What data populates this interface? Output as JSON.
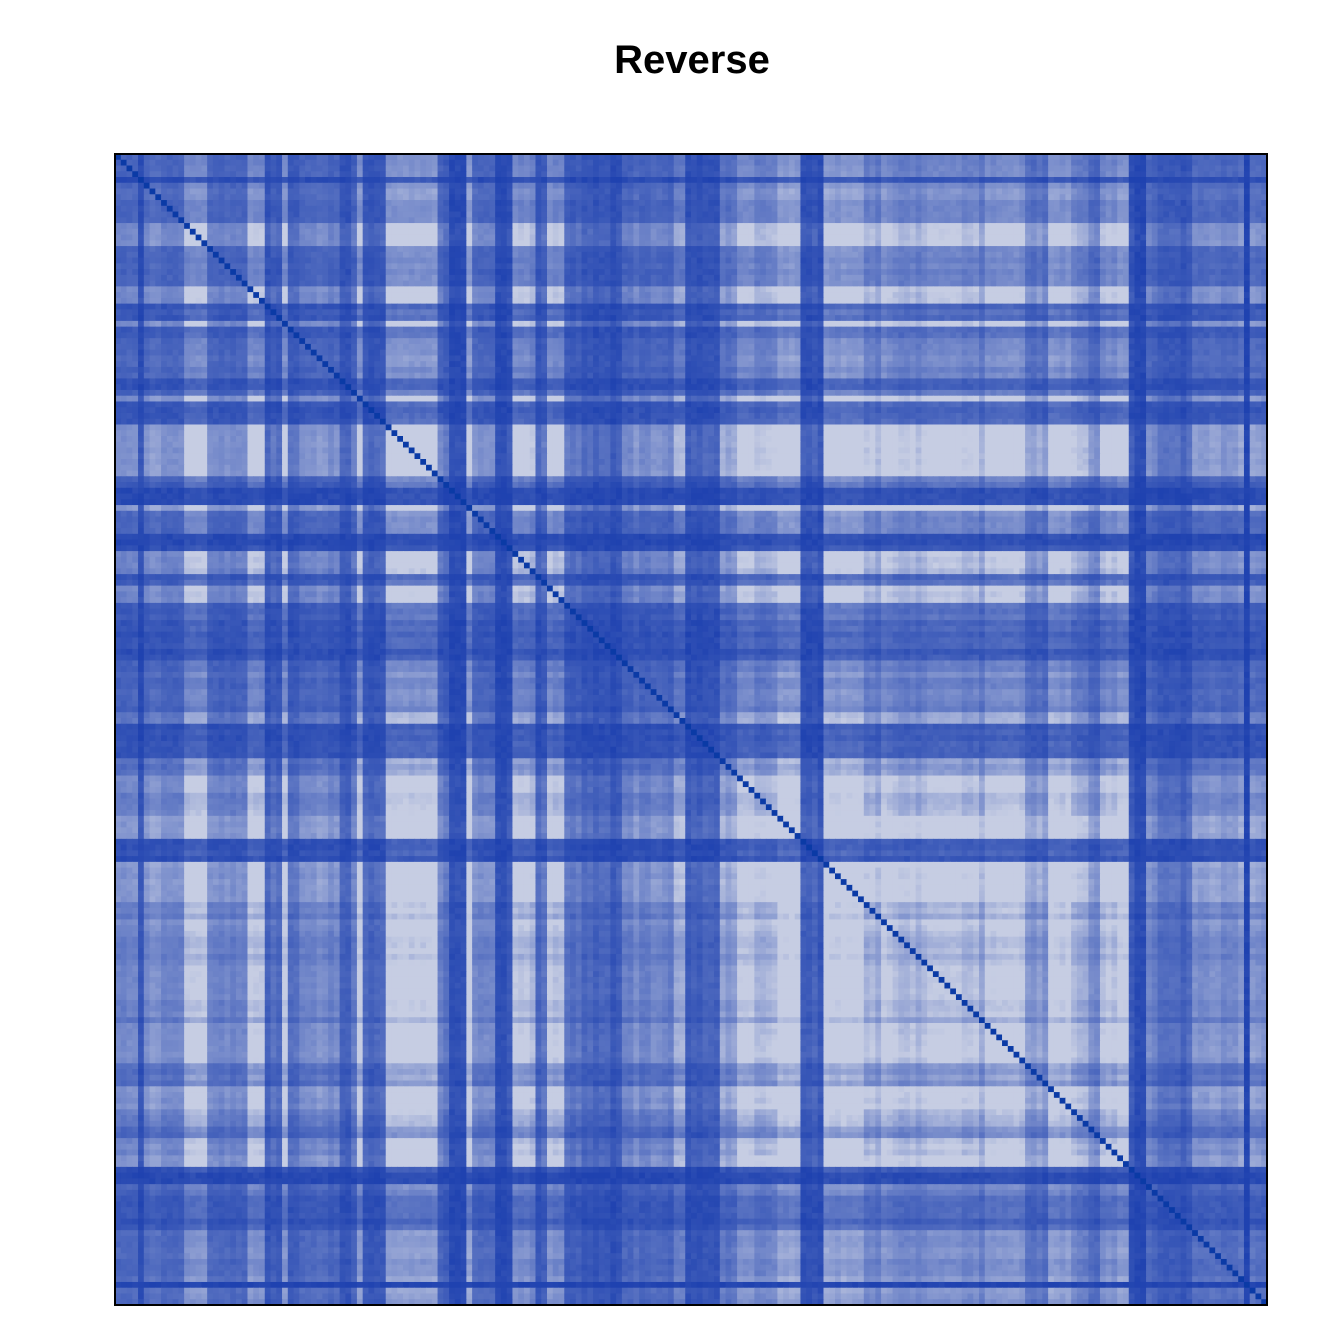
{
  "title": "Reverse",
  "colors": {
    "low": "#c6cde3",
    "high": "#1f42b0",
    "diagonal": "#0a3aa6",
    "frame": "#000000",
    "background": "#ffffff"
  },
  "chart_data": {
    "type": "heatmap",
    "title": "Reverse",
    "xlabel": "",
    "ylabel": "",
    "grid": false,
    "legend": "none",
    "n": 200,
    "diagonal": 1.0,
    "value_range": [
      0,
      1
    ]
  }
}
